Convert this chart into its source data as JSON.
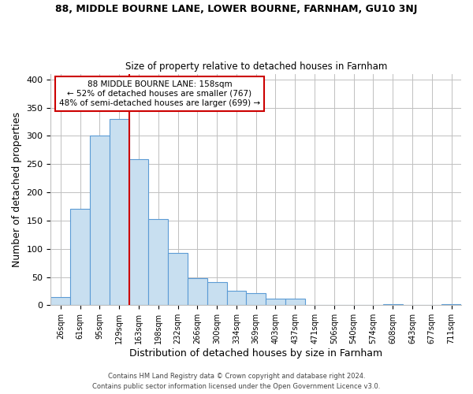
{
  "title": "88, MIDDLE BOURNE LANE, LOWER BOURNE, FARNHAM, GU10 3NJ",
  "subtitle": "Size of property relative to detached houses in Farnham",
  "xlabel": "Distribution of detached houses by size in Farnham",
  "ylabel": "Number of detached properties",
  "bar_labels": [
    "26sqm",
    "61sqm",
    "95sqm",
    "129sqm",
    "163sqm",
    "198sqm",
    "232sqm",
    "266sqm",
    "300sqm",
    "334sqm",
    "369sqm",
    "403sqm",
    "437sqm",
    "471sqm",
    "506sqm",
    "540sqm",
    "574sqm",
    "608sqm",
    "643sqm",
    "677sqm",
    "711sqm"
  ],
  "bar_values": [
    14,
    171,
    300,
    330,
    259,
    152,
    93,
    48,
    41,
    26,
    22,
    12,
    11,
    0,
    0,
    0,
    0,
    2,
    0,
    0,
    2
  ],
  "bar_color": "#c8dff0",
  "bar_edge_color": "#5b9bd5",
  "marker_line_color": "#cc0000",
  "annotation_line1": "88 MIDDLE BOURNE LANE: 158sqm",
  "annotation_line2": "← 52% of detached houses are smaller (767)",
  "annotation_line3": "48% of semi-detached houses are larger (699) →",
  "annotation_box_color": "#ffffff",
  "annotation_box_edge": "#cc0000",
  "ylim": [
    0,
    410
  ],
  "yticks": [
    0,
    50,
    100,
    150,
    200,
    250,
    300,
    350,
    400
  ],
  "footer1": "Contains HM Land Registry data © Crown copyright and database right 2024.",
  "footer2": "Contains public sector information licensed under the Open Government Licence v3.0.",
  "bg_color": "#ffffff",
  "grid_color": "#c0c0c0",
  "figsize": [
    6.0,
    5.0
  ],
  "dpi": 100
}
